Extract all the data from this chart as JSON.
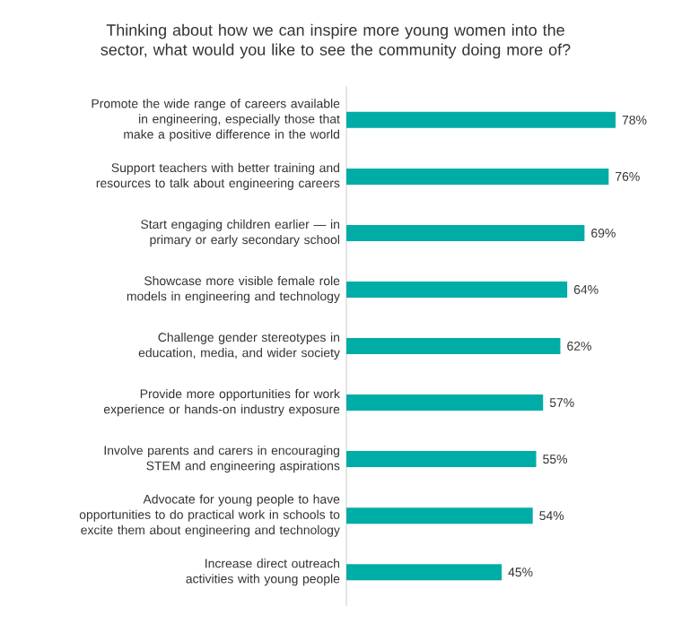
{
  "chart_data": {
    "type": "bar",
    "orientation": "horizontal",
    "title": "Thinking about how we can inspire more young women into the sector, what would you like to see the community doing more of?",
    "categories": [
      "Promote the wide range of careers available in engineering, especially those that make a positive difference in the world",
      "Support teachers with better training and resources to talk about engineering careers",
      "Start engaging children earlier — in primary or early secondary school",
      "Showcase more visible female role models in engineering and technology",
      "Challenge gender stereotypes in education, media, and wider society",
      "Provide more opportunities for work experience or hands-on industry exposure",
      "Involve parents and carers in encouraging STEM and engineering aspirations",
      "Advocate for young people to have opportunities to do practical work in schools to excite them about engineering and technology",
      "Increase direct outreach activities with young people"
    ],
    "values": [
      78,
      76,
      69,
      64,
      62,
      57,
      55,
      54,
      45
    ],
    "value_labels": [
      "78%",
      "76%",
      "69%",
      "64%",
      "62%",
      "57%",
      "55%",
      "54%",
      "45%"
    ],
    "color": "#00aca6"
  }
}
